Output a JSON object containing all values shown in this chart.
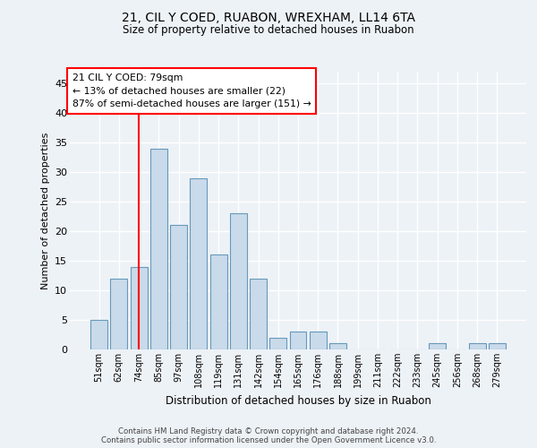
{
  "title1": "21, CIL Y COED, RUABON, WREXHAM, LL14 6TA",
  "title2": "Size of property relative to detached houses in Ruabon",
  "xlabel": "Distribution of detached houses by size in Ruabon",
  "ylabel": "Number of detached properties",
  "categories": [
    "51sqm",
    "62sqm",
    "74sqm",
    "85sqm",
    "97sqm",
    "108sqm",
    "119sqm",
    "131sqm",
    "142sqm",
    "154sqm",
    "165sqm",
    "176sqm",
    "188sqm",
    "199sqm",
    "211sqm",
    "222sqm",
    "233sqm",
    "245sqm",
    "256sqm",
    "268sqm",
    "279sqm"
  ],
  "values": [
    5,
    12,
    14,
    34,
    21,
    29,
    16,
    23,
    12,
    2,
    3,
    3,
    1,
    0,
    0,
    0,
    0,
    1,
    0,
    1,
    1
  ],
  "bar_color": "#c9daea",
  "bar_edge_color": "#6699bb",
  "annotation_text": "21 CIL Y COED: 79sqm\n← 13% of detached houses are smaller (22)\n87% of semi-detached houses are larger (151) →",
  "ylim": [
    0,
    47
  ],
  "yticks": [
    0,
    5,
    10,
    15,
    20,
    25,
    30,
    35,
    40,
    45
  ],
  "footer1": "Contains HM Land Registry data © Crown copyright and database right 2024.",
  "footer2": "Contains public sector information licensed under the Open Government Licence v3.0.",
  "bg_color": "#edf2f7",
  "plot_bg_color": "#edf2f7",
  "grid_color": "#ffffff",
  "red_line_index": 2
}
